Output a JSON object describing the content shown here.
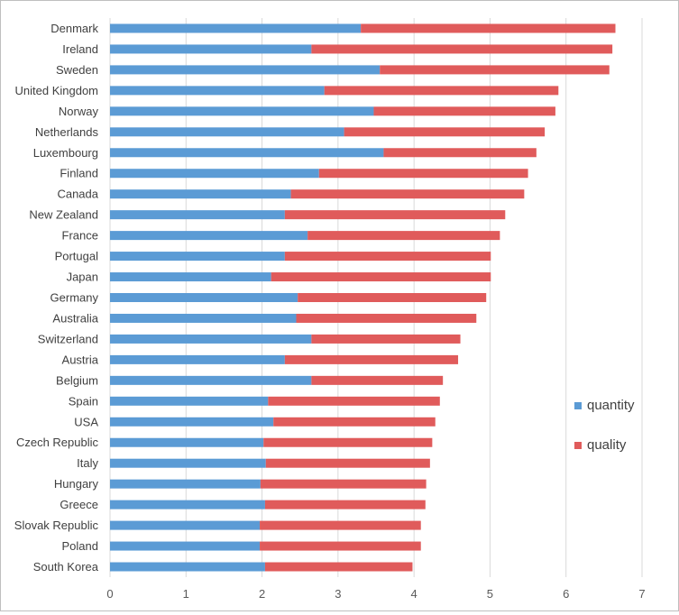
{
  "chart_data": {
    "type": "bar",
    "orientation": "horizontal",
    "stacked": true,
    "title": "",
    "xlabel": "",
    "ylabel": "",
    "categories": [
      "Denmark",
      "Ireland",
      "Sweden",
      "United Kingdom",
      "Norway",
      "Netherlands",
      "Luxembourg",
      "Finland",
      "Canada",
      "New Zealand",
      "France",
      "Portugal",
      "Japan",
      "Germany",
      "Australia",
      "Switzerland",
      "Austria",
      "Belgium",
      "Spain",
      "USA",
      "Czech Republic",
      "Italy",
      "Hungary",
      "Greece",
      "Slovak Republic",
      "Poland",
      "South Korea"
    ],
    "series": [
      {
        "name": "quantity",
        "color": "#5b9bd5",
        "values": [
          3.3,
          2.65,
          3.55,
          2.82,
          3.47,
          3.08,
          3.6,
          2.75,
          2.38,
          2.3,
          2.6,
          2.3,
          2.12,
          2.47,
          2.45,
          2.65,
          2.3,
          2.65,
          2.08,
          2.15,
          2.02,
          2.05,
          1.98,
          2.04,
          1.97,
          1.97,
          2.04
        ]
      },
      {
        "name": "quality",
        "color": "#e05b5b",
        "values": [
          3.35,
          3.96,
          3.02,
          3.08,
          2.39,
          2.64,
          2.01,
          2.75,
          3.07,
          2.9,
          2.53,
          2.71,
          2.89,
          2.48,
          2.37,
          1.96,
          2.28,
          1.73,
          2.26,
          2.13,
          2.22,
          2.16,
          2.18,
          2.11,
          2.12,
          2.12,
          1.94
        ]
      }
    ],
    "xlim": [
      0,
      7
    ],
    "x_ticks": [
      "0",
      "1",
      "2",
      "3",
      "4",
      "5",
      "6",
      "7"
    ],
    "grid": "vertical",
    "legend_position": "right"
  }
}
